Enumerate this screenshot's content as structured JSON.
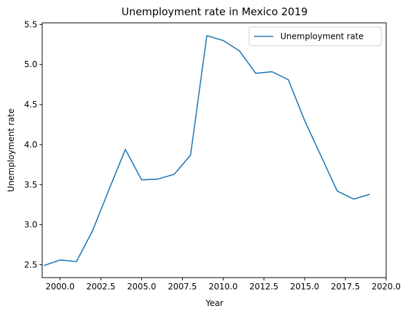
{
  "chart_data": {
    "type": "line",
    "title": "Unemployment rate in Mexico 2019",
    "xlabel": "Year",
    "ylabel": "Unemployment rate",
    "xlim": [
      1998.9,
      2020.0
    ],
    "ylim": [
      2.34,
      5.52
    ],
    "xticks": [
      2000.0,
      2002.5,
      2005.0,
      2007.5,
      2010.0,
      2012.5,
      2015.0,
      2017.5,
      2020.0
    ],
    "xtick_labels": [
      "2000.0",
      "2002.5",
      "2005.0",
      "2007.5",
      "2010.0",
      "2012.5",
      "2015.0",
      "2017.5",
      "2020.0"
    ],
    "yticks": [
      2.5,
      3.0,
      3.5,
      4.0,
      4.5,
      5.0,
      5.5
    ],
    "ytick_labels": [
      "2.5",
      "3.0",
      "3.5",
      "4.0",
      "4.5",
      "5.0",
      "5.5"
    ],
    "grid": false,
    "legend_position": "top-right",
    "series": [
      {
        "name": "Unemployment rate",
        "color": "#1f77b4",
        "x": [
          1999,
          2000,
          2001,
          2002,
          2003,
          2004,
          2005,
          2006,
          2007,
          2008,
          2009,
          2010,
          2011,
          2012,
          2013,
          2014,
          2015,
          2016,
          2017,
          2018,
          2019
        ],
        "y": [
          2.49,
          2.56,
          2.54,
          2.93,
          3.44,
          3.94,
          3.56,
          3.57,
          3.63,
          3.87,
          5.36,
          5.3,
          5.17,
          4.89,
          4.91,
          4.81,
          4.3,
          3.86,
          3.42,
          3.32,
          3.38
        ]
      }
    ]
  }
}
